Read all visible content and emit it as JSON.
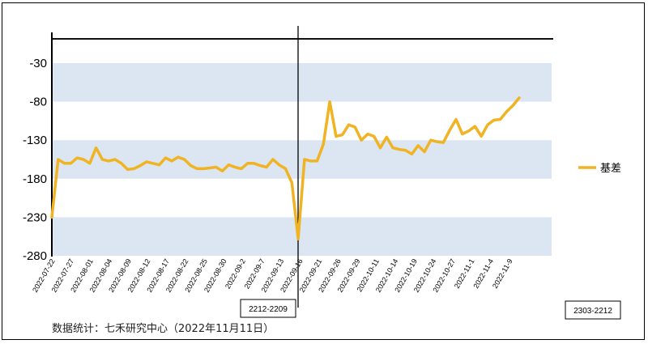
{
  "chart_data": {
    "type": "line",
    "ylim": [
      -280,
      0
    ],
    "yticks": [
      -30,
      -80,
      -130,
      -180,
      -230,
      -280
    ],
    "x_tick_labels": [
      "2022-07-22",
      "2022-07-27",
      "2022-08-01",
      "2022-08-04",
      "2022-08-09",
      "2022-08-12",
      "2022-08-17",
      "2022-08-22",
      "2022-08-25",
      "2022-08-30",
      "2022-09-2",
      "2022-09-7",
      "2022-09-13",
      "2022-09-16",
      "2022-09-21",
      "2022-09-26",
      "2022-09-29",
      "2022-10-11",
      "2022-10-14",
      "2022-10-19",
      "2022-10-24",
      "2022-10-27",
      "2022-11-1",
      "2022-11-4",
      "2022-11-9"
    ],
    "series": [
      {
        "name": "基差",
        "color": "#F0B323",
        "values": [
          -230,
          -155,
          -160,
          -160,
          -153,
          -155,
          -160,
          -140,
          -155,
          -157,
          -155,
          -160,
          -168,
          -167,
          -163,
          -158,
          -160,
          -162,
          -153,
          -157,
          -152,
          -155,
          -163,
          -167,
          -167,
          -166,
          -165,
          -170,
          -162,
          -165,
          -167,
          -160,
          -160,
          -163,
          -165,
          -155,
          -162,
          -167,
          -185,
          -258,
          -155,
          -157,
          -157,
          -135,
          -80,
          -125,
          -123,
          -110,
          -113,
          -130,
          -122,
          -125,
          -140,
          -126,
          -140,
          -142,
          -143,
          -148,
          -137,
          -145,
          -130,
          -132,
          -133,
          -117,
          -103,
          -122,
          -118,
          -112,
          -125,
          -110,
          -104,
          -103,
          -93,
          -85,
          -75
        ]
      }
    ],
    "annotations": {
      "left_box": "2212-2209",
      "right_box": "2303-2212"
    },
    "bands": "alternating light blue horizontal bands",
    "legend_position": "right",
    "grid": false
  },
  "source_note": "数据统计：七禾研究中心（2022年11月11日）"
}
